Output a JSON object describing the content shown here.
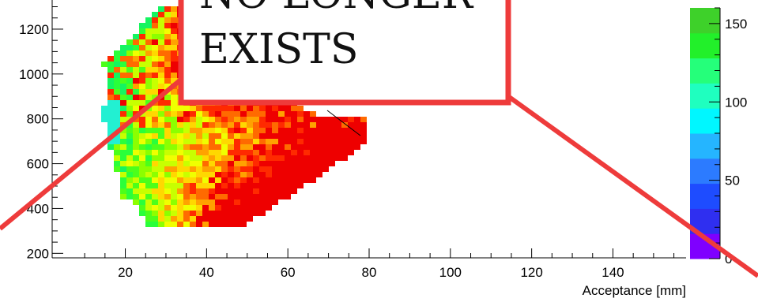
{
  "chart_data": {
    "type": "heatmap",
    "title": "",
    "xlabel": "Acceptance [mm]",
    "ylabel": "",
    "xlim": [
      2,
      158
    ],
    "ylim": [
      180,
      1330
    ],
    "x_ticks": [
      "20",
      "40",
      "60",
      "80",
      "100",
      "120",
      "140"
    ],
    "y_ticks": [
      "200",
      "400",
      "600",
      "800",
      "1000",
      "1200"
    ],
    "colorbar": {
      "range": [
        0,
        160
      ],
      "ticks": [
        "0",
        "50",
        "100",
        "150"
      ],
      "palette": [
        "#7f00ff",
        "#2f2ff0",
        "#1e4cff",
        "#2c7bff",
        "#25b5ff",
        "#00f7ff",
        "#1fffbf",
        "#25ff7a",
        "#22f02a",
        "#3ed12a"
      ]
    },
    "legend": "none",
    "grid": false,
    "cells_description": "2D histogram; filled region roughly x 14–78 mm, y 330–1290; values range ~20–160 across colour scale, dense red/orange/yellow band along the lower-right edge, green core on the left"
  },
  "overlay": {
    "line1": "NO LONGER",
    "line2": "EXISTS",
    "border_color": "#ee3b3b",
    "fill_color": "#ffffff"
  }
}
